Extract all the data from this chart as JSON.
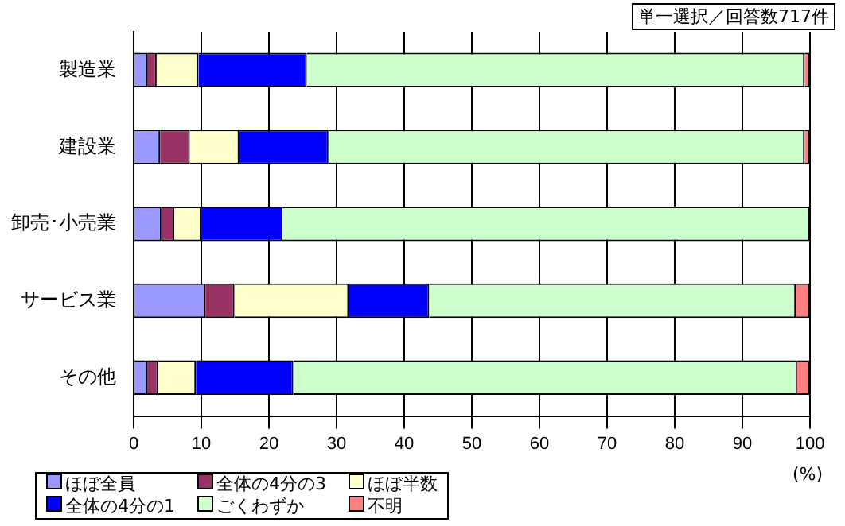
{
  "chart_data": {
    "type": "bar",
    "orientation": "horizontal",
    "stacked": true,
    "title": "単一選択／回答数717件",
    "xlabel": "(%)",
    "categories": [
      "製造業",
      "建設業",
      "卸売･小売業",
      "サービス業",
      "その他"
    ],
    "series": [
      {
        "name": "ほぼ全員",
        "color": "#9999ff",
        "values": [
          2.1,
          3.9,
          4.1,
          10.6,
          2.0
        ]
      },
      {
        "name": "全体の4分の3",
        "color": "#993366",
        "values": [
          1.3,
          4.4,
          1.9,
          4.3,
          1.6
        ]
      },
      {
        "name": "ほぼ半数",
        "color": "#ffffcc",
        "values": [
          6.2,
          7.3,
          4.0,
          16.9,
          5.6
        ]
      },
      {
        "name": "全体の4分の1",
        "color": "#0000ff",
        "values": [
          16.0,
          13.2,
          12.0,
          11.9,
          14.4
        ]
      },
      {
        "name": "ごくわずか",
        "color": "#ccffcc",
        "values": [
          73.6,
          70.4,
          78.0,
          54.2,
          74.5
        ]
      },
      {
        "name": "不明",
        "color": "#ff8080",
        "values": [
          0.8,
          0.8,
          0,
          2.1,
          1.9
        ]
      }
    ],
    "xlim": [
      0,
      100
    ],
    "xticks": [
      0,
      10,
      20,
      30,
      40,
      50,
      60,
      70,
      80,
      90,
      100
    ],
    "grid": "x",
    "legend": "bottom left"
  }
}
